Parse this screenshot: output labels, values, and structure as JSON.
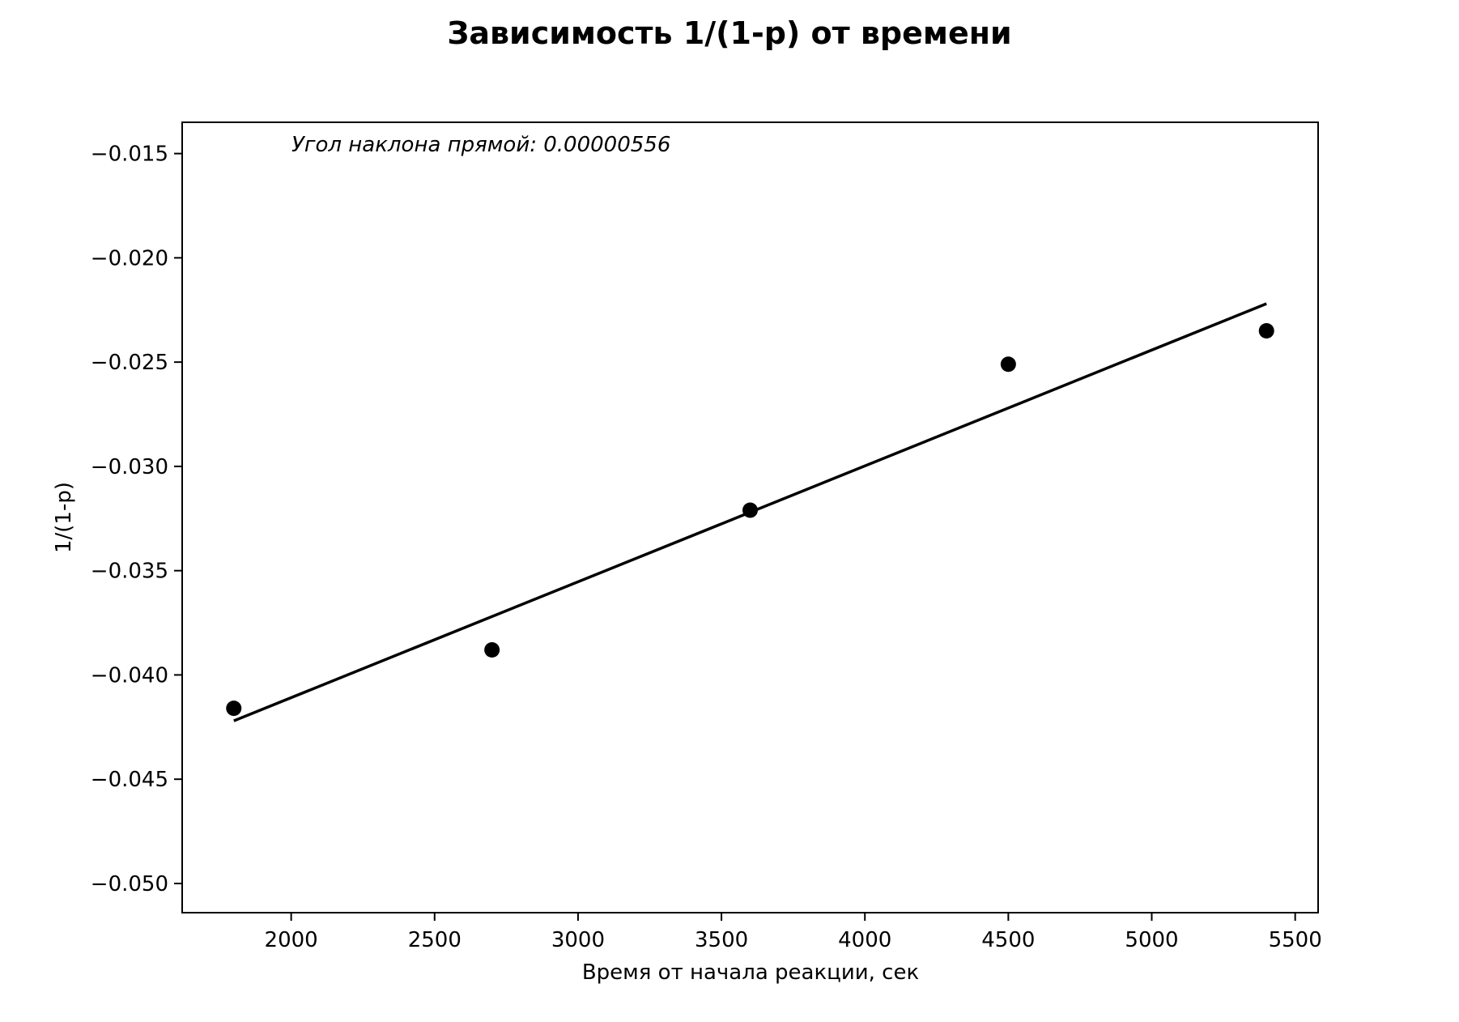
{
  "chart_data": {
    "type": "scatter",
    "title": "Зависимость 1/(1-p) от времени",
    "xlabel": "Время от начала реакции, сек",
    "ylabel": "1/(1-p)",
    "annotation": "Угол наклона прямой: 0.00000556",
    "xlim": [
      1620,
      5580
    ],
    "ylim": [
      -0.0514,
      -0.0135
    ],
    "x_ticks": [
      2000,
      2500,
      3000,
      3500,
      4000,
      4500,
      5000,
      5500
    ],
    "x_tick_labels": [
      "2000",
      "2500",
      "3000",
      "3500",
      "4000",
      "4500",
      "5000",
      "5500"
    ],
    "y_ticks": [
      -0.015,
      -0.02,
      -0.025,
      -0.03,
      -0.035,
      -0.04,
      -0.045,
      -0.05
    ],
    "y_tick_labels": [
      "−0.015",
      "−0.020",
      "−0.025",
      "−0.030",
      "−0.035",
      "−0.040",
      "−0.045",
      "−0.050"
    ],
    "grid": false,
    "series": [
      {
        "type": "scatter",
        "x": [
          1800,
          2700,
          3600,
          4500,
          5400
        ],
        "y": [
          -0.0416,
          -0.0388,
          -0.0321,
          -0.0251,
          -0.0235
        ]
      },
      {
        "type": "line",
        "x": [
          1800,
          5400
        ],
        "y": [
          -0.0422,
          -0.0222
        ]
      }
    ],
    "colors": {
      "points": "#000000",
      "line": "#000000",
      "axes": "#000000"
    }
  }
}
